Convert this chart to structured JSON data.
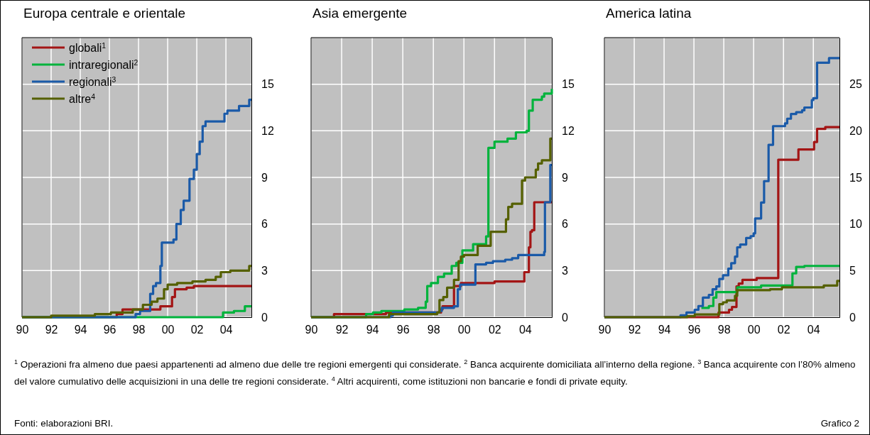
{
  "chart_data": [
    {
      "type": "step",
      "title": "Europa centrale e orientale",
      "xlim": [
        1990,
        2005.75
      ],
      "xticks": [
        {
          "value": 1990,
          "label": "90"
        },
        {
          "value": 1992,
          "label": "92"
        },
        {
          "value": 1994,
          "label": "94"
        },
        {
          "value": 1996,
          "label": "96"
        },
        {
          "value": 1998,
          "label": "98"
        },
        {
          "value": 2000,
          "label": "00"
        },
        {
          "value": 2002,
          "label": "02"
        },
        {
          "value": 2004,
          "label": "04"
        }
      ],
      "ylim": [
        0,
        18
      ],
      "yticks": [
        0,
        3,
        6,
        9,
        12,
        15
      ],
      "grid": true,
      "legend": "top left",
      "series": [
        {
          "name": "globali$^{1}$",
          "color": "#a31515",
          "x": [
            1990,
            1996.5,
            1996.9,
            1998.5,
            1999.5,
            2000.3,
            2000.5,
            2001.3,
            2001.8,
            2005.75
          ],
          "values": [
            0,
            0.2,
            0.5,
            0.5,
            0.7,
            1.3,
            1.8,
            1.9,
            2.0,
            2.0
          ]
        },
        {
          "name": "intraregionali$^{2}$",
          "color": "#00b33c",
          "x": [
            1990,
            2003.8,
            2004.55,
            2005.3,
            2005.75
          ],
          "values": [
            0,
            0.3,
            0.4,
            0.7,
            0.7
          ]
        },
        {
          "name": "regionali$^{3}$",
          "color": "#1a5aa8",
          "x": [
            1990,
            1997.8,
            1998.1,
            1998.8,
            1999.0,
            1999.2,
            1999.5,
            1999.6,
            2000.4,
            2000.6,
            2000.9,
            2001.1,
            2001.5,
            2001.8,
            2002.0,
            2002.2,
            2002.4,
            2002.6,
            2003.9,
            2004.1,
            2004.9,
            2005.6,
            2005.75
          ],
          "values": [
            0,
            0.2,
            0.4,
            1.5,
            2.0,
            2.2,
            3.3,
            4.8,
            5.0,
            6.0,
            6.9,
            7.5,
            8.9,
            9.5,
            10.5,
            11.3,
            12.3,
            12.6,
            13.1,
            13.3,
            13.6,
            14.0,
            14.0
          ]
        },
        {
          "name": "altre$^{4}$",
          "color": "#556000",
          "x": [
            1990,
            1992,
            1995,
            1996.1,
            1997.6,
            1998.3,
            1998.9,
            1999.3,
            1999.75,
            2000,
            2000.65,
            2001.7,
            2002.6,
            2003.3,
            2003.65,
            2004.3,
            2005.6,
            2005.75
          ],
          "values": [
            0,
            0.1,
            0.2,
            0.3,
            0.5,
            0.8,
            1.0,
            1.2,
            1.8,
            2.1,
            2.2,
            2.3,
            2.4,
            2.6,
            2.9,
            3.0,
            3.3,
            3.3
          ]
        }
      ],
      "annotations": [
        "$^{1}$ Operazioni fra almeno due paesi appartenenti ad almeno due delle tre regioni emergenti qui considerate.  $^{2}$ Banca acquirente domiciliata all’interno della regione.  $^{3}$ Banca acquirente con l’80% almeno del valore cumulativo delle acquisizioni in una delle tre regioni considerate.  $^{4}$ Altri acquirenti, come istituzioni non bancarie e fondi di private equity.",
        "Fonti: elaborazioni BRI.",
        "Grafico 2"
      ]
    },
    {
      "type": "step",
      "title": "Asia emergente",
      "xlim": [
        1990,
        2005.75
      ],
      "xticks": [
        {
          "value": 1990,
          "label": "90"
        },
        {
          "value": 1992,
          "label": "92"
        },
        {
          "value": 1994,
          "label": "94"
        },
        {
          "value": 1996,
          "label": "96"
        },
        {
          "value": 1998,
          "label": "98"
        },
        {
          "value": 2000,
          "label": "00"
        },
        {
          "value": 2002,
          "label": "02"
        },
        {
          "value": 2004,
          "label": "04"
        }
      ],
      "ylim": [
        0,
        18
      ],
      "yticks": [
        0,
        3,
        6,
        9,
        12,
        15
      ],
      "grid": true,
      "series": [
        {
          "color": "#a31515",
          "x": [
            1990,
            1991.5,
            1994.9,
            1998.5,
            1998.6,
            1999.35,
            1999.8,
            2002.0,
            2003.95,
            2004.25,
            2004.35,
            2004.45,
            2004.6,
            2005.75
          ],
          "values": [
            0,
            0.2,
            0.3,
            0.5,
            0.7,
            2.0,
            2.2,
            2.3,
            2.9,
            4.5,
            5.5,
            5.6,
            7.4,
            7.4
          ]
        },
        {
          "color": "#00b33c",
          "x": [
            1990,
            1993.6,
            1994.05,
            1994.6,
            1996.1,
            1997.0,
            1997.5,
            1997.6,
            1997.85,
            1998.3,
            1998.7,
            1999.2,
            1999.5,
            1999.9,
            2000.6,
            2001.45,
            2001.6,
            2002.0,
            2002.85,
            2003.4,
            2004.1,
            2004.25,
            2004.5,
            2005.1,
            2005.25,
            2005.75
          ],
          "values": [
            0,
            0.2,
            0.3,
            0.4,
            0.5,
            0.6,
            1.0,
            2.0,
            2.2,
            2.6,
            2.8,
            3.3,
            3.5,
            4.3,
            4.7,
            5.2,
            10.9,
            11.3,
            11.5,
            11.9,
            12.0,
            13.3,
            14.0,
            14.2,
            14.4,
            14.7
          ]
        },
        {
          "color": "#1a5aa8",
          "x": [
            1990,
            1995.2,
            1995.35,
            1998.4,
            1998.55,
            1999.35,
            1999.6,
            1999.75,
            2000.75,
            2001.45,
            2001.9,
            2002.7,
            2003.15,
            2003.55,
            2005.25,
            2005.3,
            2005.65,
            2005.75
          ],
          "values": [
            0,
            0.1,
            0.3,
            0.4,
            0.6,
            0.7,
            1.8,
            2.1,
            3.4,
            3.5,
            3.6,
            3.7,
            3.8,
            4.0,
            4.2,
            7.4,
            9.8,
            9.8
          ]
        },
        {
          "color": "#556000",
          "x": [
            1990,
            1995.1,
            1998.25,
            1998.4,
            1998.65,
            1998.9,
            1999.35,
            1999.65,
            1999.8,
            2000,
            2000.9,
            2001.75,
            2002.75,
            2002.9,
            2003.15,
            2003.8,
            2004.0,
            2004.7,
            2004.85,
            2005.1,
            2005.65,
            2005.75
          ],
          "values": [
            0,
            0.2,
            0.3,
            1.1,
            1.3,
            1.9,
            2.4,
            3.6,
            3.9,
            4.0,
            4.6,
            5.5,
            6.3,
            7.1,
            7.3,
            8.8,
            9.0,
            9.5,
            9.9,
            10.1,
            11.5,
            11.5
          ]
        }
      ]
    },
    {
      "type": "step",
      "title": "America latina",
      "xlim": [
        1990,
        2005.75
      ],
      "xticks": [
        {
          "value": 1990,
          "label": "90"
        },
        {
          "value": 1992,
          "label": "92"
        },
        {
          "value": 1994,
          "label": "94"
        },
        {
          "value": 1996,
          "label": "96"
        },
        {
          "value": 1998,
          "label": "98"
        },
        {
          "value": 2000,
          "label": "00"
        },
        {
          "value": 2002,
          "label": "02"
        },
        {
          "value": 2004,
          "label": "04"
        }
      ],
      "ylim": [
        0,
        30
      ],
      "yticks": [
        0,
        5,
        10,
        15,
        20,
        25
      ],
      "grid": true,
      "series": [
        {
          "color": "#a31515",
          "x": [
            1990,
            1997.65,
            1998.35,
            1998.55,
            1998.85,
            1999.0,
            1999.25,
            2000.2,
            2001.65,
            2003.0,
            2004.05,
            2004.25,
            2004.8,
            2005.75
          ],
          "values": [
            0,
            0.5,
            0.8,
            1.1,
            3.3,
            3.6,
            4.0,
            4.2,
            16.9,
            18.0,
            18.8,
            20.2,
            20.4,
            20.4
          ]
        },
        {
          "color": "#00b33c",
          "x": [
            1996.5,
            1997.0,
            1997.3,
            1997.5,
            1998.9,
            2000.5,
            2002.6,
            2002.85,
            2003.4,
            2005.75
          ],
          "values": [
            1.0,
            1.2,
            2.1,
            2.7,
            3.2,
            3.4,
            4.7,
            5.4,
            5.5,
            5.5
          ]
        },
        {
          "color": "#1a5aa8",
          "x": [
            1990,
            1995.1,
            1995.5,
            1996.05,
            1996.3,
            1996.6,
            1997.0,
            1997.25,
            1997.5,
            1997.7,
            1997.95,
            1998.3,
            1998.5,
            1998.75,
            1998.9,
            1999.1,
            1999.5,
            1999.8,
            2000.0,
            2000.1,
            2000.5,
            2000.7,
            2001.0,
            2001.3,
            2002.1,
            2002.25,
            2002.5,
            2002.85,
            2003.25,
            2003.4,
            2003.9,
            2004.0,
            2004.25,
            2005.05,
            2005.75
          ],
          "values": [
            0,
            0.2,
            0.5,
            0.8,
            1.2,
            2.1,
            2.4,
            3.0,
            3.3,
            4.1,
            4.5,
            5.2,
            5.8,
            6.5,
            7.5,
            7.8,
            8.5,
            8.7,
            9.0,
            10.6,
            12.3,
            14.6,
            18.5,
            20.5,
            20.8,
            21.3,
            21.8,
            22.0,
            22.2,
            22.5,
            23.3,
            23.5,
            27.3,
            27.8,
            27.8
          ]
        },
        {
          "color": "#556000",
          "x": [
            1990,
            1995.55,
            1996.05,
            1997.7,
            1997.95,
            1998.2,
            1998.75,
            1998.9,
            2001.1,
            2001.9,
            2004.7,
            2005.6,
            2005.75
          ],
          "values": [
            0,
            0.1,
            0.3,
            1.4,
            1.6,
            1.8,
            2.3,
            2.9,
            3.0,
            3.2,
            3.4,
            3.9,
            3.9
          ]
        }
      ]
    }
  ]
}
